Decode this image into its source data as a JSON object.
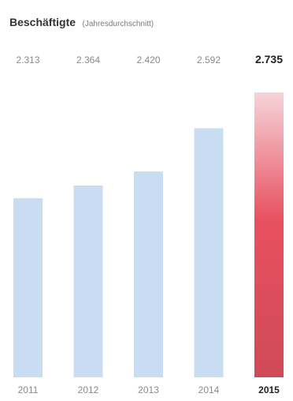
{
  "chart_data": {
    "type": "bar",
    "title": "Beschäftigte",
    "subtitle": "(Jahresdurchschnitt)",
    "categories": [
      "2011",
      "2012",
      "2013",
      "2014",
      "2015"
    ],
    "values": [
      2313,
      2364,
      2420,
      2592,
      2735
    ],
    "value_labels": [
      "2.313",
      "2.364",
      "2.420",
      "2.592",
      "2.735"
    ],
    "highlight_index": 4,
    "ylim": [
      1600,
      2735
    ],
    "grid": false,
    "legend": "none",
    "colors": {
      "bar": "#c9ddf2",
      "highlight_top": "#f6d4da",
      "highlight_mid": "#e8505f",
      "highlight_bottom": "#cf4a57",
      "label": "#8a8a8a",
      "label_highlight": "#222222"
    }
  }
}
